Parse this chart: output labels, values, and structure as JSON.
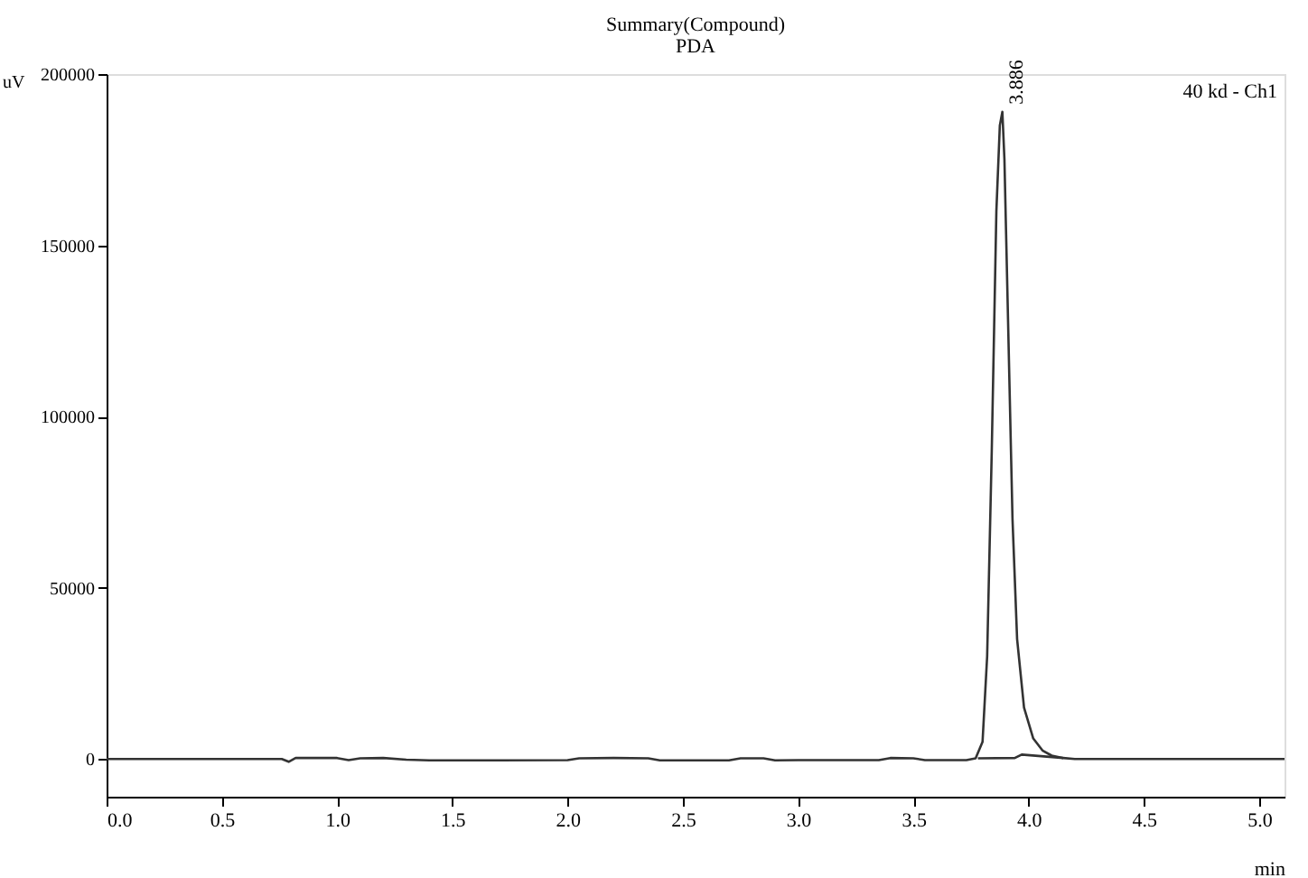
{
  "chart_data": {
    "type": "line",
    "title": "Summary(Compound)",
    "subtitle": "PDA",
    "xlabel": "min",
    "ylabel": "uV",
    "series": [
      {
        "color": "#333333",
        "x": [
          0.0,
          0.76,
          0.79,
          0.82,
          1.0,
          1.05,
          1.1,
          1.2,
          1.3,
          1.4,
          1.7,
          2.0,
          2.05,
          2.2,
          2.35,
          2.4,
          2.7,
          2.75,
          2.85,
          2.9,
          3.0,
          3.05,
          3.35,
          3.4,
          3.5,
          3.55,
          3.73,
          3.77,
          3.8,
          3.82,
          3.84,
          3.86,
          3.875,
          3.886,
          3.895,
          3.91,
          3.93,
          3.95,
          3.98,
          4.02,
          4.06,
          4.1,
          4.15,
          4.2,
          5.11
        ],
        "values": [
          0,
          0,
          -800,
          300,
          300,
          -300,
          200,
          300,
          -200,
          -400,
          -400,
          -300,
          200,
          300,
          200,
          -400,
          -400,
          200,
          200,
          -400,
          -300,
          -300,
          -300,
          300,
          200,
          -300,
          -300,
          200,
          5000,
          30000,
          90000,
          160000,
          185000,
          189000,
          175000,
          130000,
          70000,
          35000,
          15000,
          6000,
          2500,
          1000,
          300,
          0,
          0
        ]
      },
      {
        "type": "line",
        "color": "#333333",
        "x": [
          3.78,
          3.94,
          3.97,
          4.15
        ],
        "values": [
          200,
          300,
          1300,
          300
        ]
      }
    ],
    "xlim": [
      0,
      5.11
    ],
    "ylim": [
      -11000,
      200000
    ],
    "xticks": [
      {
        "value": 0,
        "label": "0.0"
      },
      {
        "value": 0.5,
        "label": "0.5"
      },
      {
        "value": 1,
        "label": "1.0"
      },
      {
        "value": 1.5,
        "label": "1.5"
      },
      {
        "value": 2,
        "label": "2.0"
      },
      {
        "value": 2.5,
        "label": "2.5"
      },
      {
        "value": 3,
        "label": "3.0"
      },
      {
        "value": 3.5,
        "label": "3.5"
      },
      {
        "value": 4,
        "label": "4.0"
      },
      {
        "value": 4.5,
        "label": "4.5"
      },
      {
        "value": 5,
        "label": "5.0"
      }
    ],
    "yticks": [
      0,
      50000,
      100000,
      150000,
      200000
    ],
    "annotations": [
      {
        "text": "3.886",
        "x": 3.886,
        "y": 189000
      },
      "40 kd - Ch1"
    ]
  }
}
